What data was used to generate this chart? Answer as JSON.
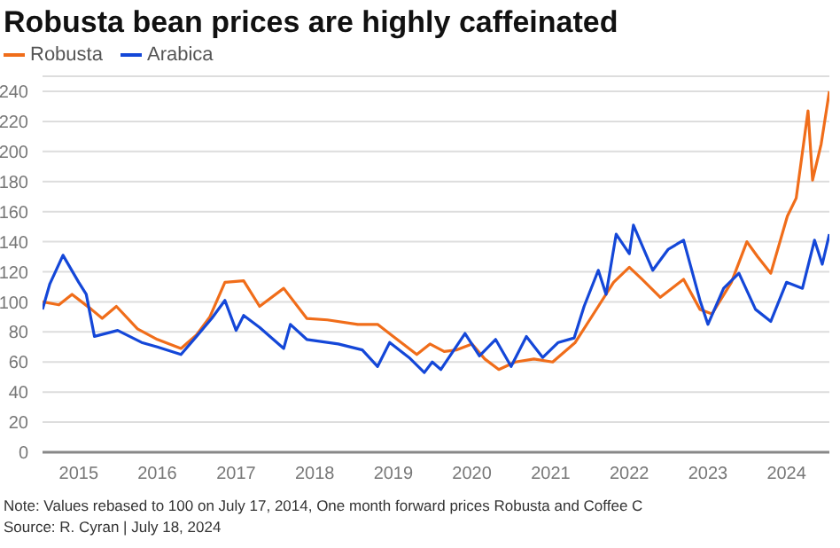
{
  "chart_data": {
    "type": "line",
    "title": "Robusta bean prices are highly caffeinated",
    "legend": "top left",
    "grid": "y",
    "marker": "none",
    "line_style": "solid",
    "xlim": [
      "2014-07-17",
      "2024-07-18"
    ],
    "xticks": [
      {
        "value": "2015-01-01",
        "label": "2015"
      },
      {
        "value": "2016-01-01",
        "label": "2016"
      },
      {
        "value": "2017-01-01",
        "label": "2017"
      },
      {
        "value": "2018-01-01",
        "label": "2018"
      },
      {
        "value": "2019-01-01",
        "label": "2019"
      },
      {
        "value": "2020-01-01",
        "label": "2020"
      },
      {
        "value": "2021-01-01",
        "label": "2021"
      },
      {
        "value": "2022-01-01",
        "label": "2022"
      },
      {
        "value": "2023-01-01",
        "label": "2023"
      },
      {
        "value": "2024-01-01",
        "label": "2024"
      }
    ],
    "ylim": [
      0,
      250
    ],
    "yticks": [
      0,
      20,
      40,
      60,
      80,
      100,
      120,
      140,
      160,
      180,
      200,
      220,
      240
    ],
    "series": [
      {
        "name": "Robusta",
        "color": "#f06d1a",
        "x": [
          "2014-07-17",
          "2014-10-01",
          "2014-12-01",
          "2015-03-01",
          "2015-04-20",
          "2015-06-25",
          "2015-10-01",
          "2016-01-01",
          "2016-04-20",
          "2016-07-01",
          "2016-09-01",
          "2016-11-10",
          "2017-02-05",
          "2017-04-20",
          "2017-08-10",
          "2017-11-25",
          "2018-03-01",
          "2018-07-20",
          "2018-10-20",
          "2019-01-01",
          "2019-04-20",
          "2019-06-20",
          "2019-08-25",
          "2019-10-20",
          "2020-01-01",
          "2020-03-01",
          "2020-05-05",
          "2020-07-20",
          "2020-10-15",
          "2021-01-10",
          "2021-04-25",
          "2021-08-10",
          "2021-10-20",
          "2022-01-01",
          "2022-03-01",
          "2022-05-25",
          "2022-09-10",
          "2022-11-25",
          "2023-01-20",
          "2023-04-20",
          "2023-07-01",
          "2023-08-20",
          "2023-10-20",
          "2024-01-05",
          "2024-02-15",
          "2024-04-10",
          "2024-05-01",
          "2024-06-10",
          "2024-07-18"
        ],
        "values": [
          100,
          98,
          105,
          95,
          89,
          97,
          82,
          75,
          69,
          78,
          90,
          113,
          114,
          97,
          109,
          89,
          88,
          85,
          85,
          77,
          65,
          72,
          67,
          68,
          72,
          62,
          55,
          60,
          62,
          60,
          73,
          97,
          113,
          123,
          115,
          103,
          115,
          95,
          92,
          113,
          140,
          130,
          119,
          157,
          169,
          227,
          181,
          205,
          240
        ]
      },
      {
        "name": "Arabica",
        "color": "#1447d8",
        "x": [
          "2014-07-17",
          "2014-08-20",
          "2014-10-20",
          "2015-01-01",
          "2015-02-05",
          "2015-03-15",
          "2015-07-01",
          "2015-10-20",
          "2016-01-01",
          "2016-04-20",
          "2016-07-01",
          "2016-09-10",
          "2016-11-10",
          "2017-01-01",
          "2017-02-05",
          "2017-04-20",
          "2017-08-10",
          "2017-09-10",
          "2017-11-25",
          "2018-04-20",
          "2018-08-10",
          "2018-10-20",
          "2018-12-15",
          "2019-03-15",
          "2019-05-25",
          "2019-07-01",
          "2019-08-10",
          "2019-11-30",
          "2020-02-05",
          "2020-04-20",
          "2020-07-01",
          "2020-09-10",
          "2020-11-25",
          "2021-02-05",
          "2021-04-20",
          "2021-06-05",
          "2021-08-10",
          "2021-09-15",
          "2021-11-01",
          "2022-01-01",
          "2022-01-20",
          "2022-04-20",
          "2022-07-01",
          "2022-09-10",
          "2022-11-25",
          "2023-01-01",
          "2023-03-15",
          "2023-05-25",
          "2023-08-10",
          "2023-10-20",
          "2024-01-01",
          "2024-03-15",
          "2024-05-10",
          "2024-06-15",
          "2024-07-18"
        ],
        "values": [
          95,
          112,
          131,
          113,
          105,
          77,
          81,
          73,
          70,
          65,
          77,
          89,
          101,
          81,
          91,
          83,
          69,
          85,
          75,
          72,
          68,
          57,
          73,
          63,
          53,
          60,
          55,
          79,
          64,
          75,
          57,
          77,
          63,
          73,
          76,
          97,
          121,
          105,
          145,
          132,
          151,
          121,
          135,
          141,
          101,
          85,
          109,
          119,
          95,
          87,
          113,
          109,
          141,
          125,
          145
        ]
      }
    ],
    "annotations": [
      "Note: Values rebased to 100 on July 17, 2014, One month forward prices Robusta and Coffee C",
      "Source: R. Cyran | July 18, 2024"
    ]
  }
}
